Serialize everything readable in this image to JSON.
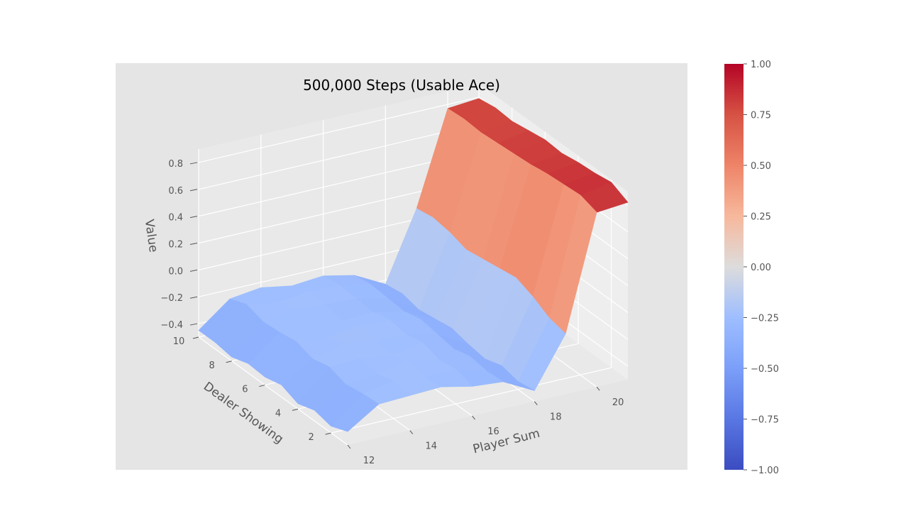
{
  "chart_data": {
    "type": "surface3d",
    "title": "500,000 Steps (Usable Ace)",
    "xlabel": "Player Sum",
    "ylabel": "Dealer Showing",
    "zlabel": "Value",
    "x_ticks": [
      "12",
      "14",
      "16",
      "18",
      "20"
    ],
    "y_ticks": [
      "2",
      "4",
      "6",
      "8",
      "10"
    ],
    "z_ticks": [
      "−0.4",
      "−0.2",
      "0.0",
      "0.2",
      "0.4",
      "0.6",
      "0.8"
    ],
    "colorbar_ticks": [
      "−1.00",
      "−0.75",
      "−0.50",
      "−0.25",
      "0.00",
      "0.25",
      "0.50",
      "0.75",
      "1.00"
    ],
    "colormap": "coolwarm",
    "clim": [
      -1.0,
      1.0
    ],
    "xlim": [
      12,
      21
    ],
    "ylim": [
      1,
      10
    ],
    "zlim": [
      -0.5,
      0.9
    ],
    "x": [
      12,
      13,
      14,
      15,
      16,
      17,
      18,
      19,
      20,
      21
    ],
    "y": [
      1,
      2,
      3,
      4,
      5,
      6,
      7,
      8,
      9,
      10
    ],
    "z": [
      [
        -0.4,
        -0.45,
        -0.42,
        -0.46,
        -0.41,
        -0.44,
        -0.43,
        -0.47,
        -0.45,
        -0.45
      ],
      [
        -0.25,
        -0.26,
        -0.28,
        -0.24,
        -0.27,
        -0.23,
        -0.25,
        -0.26,
        -0.22,
        -0.27
      ],
      [
        -0.24,
        -0.22,
        -0.26,
        -0.23,
        -0.21,
        -0.25,
        -0.24,
        -0.22,
        -0.26,
        -0.24
      ],
      [
        -0.23,
        -0.25,
        -0.21,
        -0.26,
        -0.24,
        -0.22,
        -0.27,
        -0.24,
        -0.23,
        -0.28
      ],
      [
        -0.28,
        -0.24,
        -0.26,
        -0.22,
        -0.25,
        -0.23,
        -0.26,
        -0.25,
        -0.24,
        -0.26
      ],
      [
        -0.3,
        -0.31,
        -0.29,
        -0.32,
        -0.3,
        -0.28,
        -0.31,
        -0.3,
        -0.29,
        -0.31
      ],
      [
        -0.42,
        -0.44,
        -0.41,
        -0.45,
        -0.43,
        -0.4,
        -0.42,
        -0.44,
        -0.41,
        -0.43
      ],
      [
        -0.05,
        -0.02,
        0.05,
        0.1,
        0.08,
        0.06,
        0.04,
        0.08,
        0.1,
        0.08
      ],
      [
        0.8,
        0.84,
        0.83,
        0.82,
        0.8,
        0.79,
        0.78,
        0.77,
        0.78,
        0.77
      ],
      [
        0.82,
        0.88,
        0.86,
        0.85,
        0.83,
        0.84,
        0.82,
        0.8,
        0.81,
        0.79
      ]
    ],
    "grid": true,
    "colorbar": "right"
  }
}
